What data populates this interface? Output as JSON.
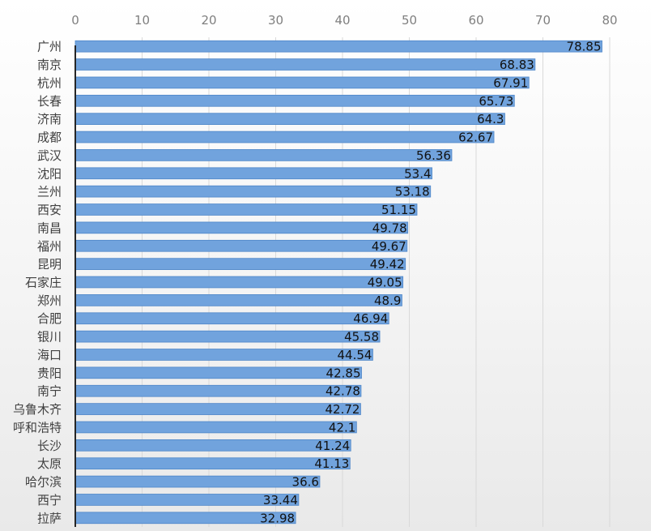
{
  "chart_data": {
    "type": "bar",
    "orientation": "horizontal",
    "title": "",
    "xlabel": "",
    "ylabel": "",
    "xlim": [
      0,
      80
    ],
    "x_ticks": [
      0,
      10,
      20,
      30,
      40,
      50,
      60,
      70,
      80
    ],
    "x_axis_position": "top",
    "grid": true,
    "legend": "none",
    "categories": [
      "广州",
      "南京",
      "杭州",
      "长春",
      "济南",
      "成都",
      "武汉",
      "沈阳",
      "兰州",
      "西安",
      "南昌",
      "福州",
      "昆明",
      "石家庄",
      "郑州",
      "合肥",
      "银川",
      "海口",
      "贵阳",
      "南宁",
      "乌鲁木齐",
      "呼和浩特",
      "长沙",
      "太原",
      "哈尔滨",
      "西宁",
      "拉萨"
    ],
    "values": [
      78.85,
      68.83,
      67.91,
      65.73,
      64.3,
      62.67,
      56.36,
      53.4,
      53.18,
      51.15,
      49.78,
      49.67,
      49.42,
      49.05,
      48.9,
      46.94,
      45.58,
      44.54,
      42.85,
      42.78,
      42.72,
      42.1,
      41.24,
      41.13,
      36.6,
      33.44,
      32.98
    ],
    "data_labels": [
      "78.85",
      "68.83",
      "67.91",
      "65.73",
      "64.3",
      "62.67",
      "56.36",
      "53.4",
      "53.18",
      "51.15",
      "49.78",
      "49.67",
      "49.42",
      "49.05",
      "48.9",
      "46.94",
      "45.58",
      "44.54",
      "42.85",
      "42.78",
      "42.72",
      "42.1",
      "41.24",
      "41.13",
      "36.6",
      "33.44",
      "32.98"
    ],
    "colors": {
      "bar": "#71a3dd",
      "bar_edge": "#4e86c8",
      "grid": "#d9d9d9",
      "axis": "#262626"
    }
  }
}
